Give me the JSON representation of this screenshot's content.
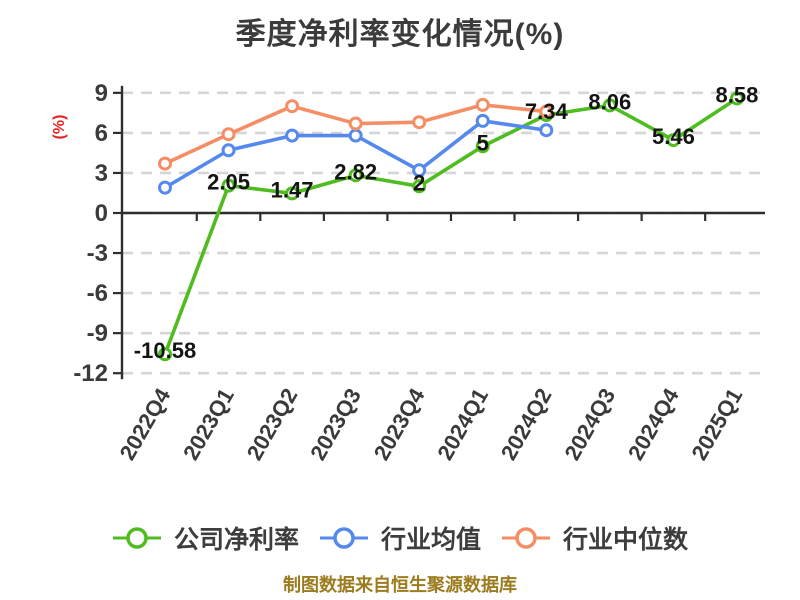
{
  "title": "季度净利率变化情况(%)",
  "y_axis_label": "(%)",
  "footer": "制图数据来自恒生聚源数据库",
  "colors": {
    "company_series": "#4fbc1f",
    "industry_mean_series": "#5589ee",
    "industry_median_series": "#f58e64",
    "axis": "#2e2e2e",
    "grid": "#d6d6d6",
    "title_text": "#3b3b3b",
    "tick_text": "#3a3a3a",
    "data_label_text": "#141414",
    "y_axis_label_text": "#e12520",
    "footer_text": "#9c7c1e",
    "marker_fill": "#ffffff"
  },
  "chart_data": {
    "type": "line",
    "title": "季度净利率变化情况(%)",
    "ylabel": "(%)",
    "xlabel": "",
    "categories": [
      "2022Q4",
      "2023Q1",
      "2023Q2",
      "2023Q3",
      "2023Q4",
      "2024Q1",
      "2024Q2",
      "2024Q3",
      "2024Q4",
      "2025Q1"
    ],
    "yticks": [
      9,
      6,
      3,
      0,
      -3,
      -6,
      -9,
      -12
    ],
    "ylim": [
      -12,
      9
    ],
    "grid": true,
    "grid_style": "dashed",
    "legend_position": "bottom",
    "series": [
      {
        "name": "公司净利率",
        "color": "#4fbc1f",
        "values": [
          -10.58,
          2.05,
          1.47,
          2.82,
          2,
          5,
          7.34,
          8.06,
          5.46,
          8.58
        ],
        "point_labels": [
          "-10.58",
          "2.05",
          "1.47",
          "2.82",
          "2",
          "5",
          "7.34",
          "8.06",
          "5.46",
          "8.58"
        ]
      },
      {
        "name": "行业均值",
        "color": "#5589ee",
        "values": [
          1.9,
          4.7,
          5.8,
          5.8,
          3.2,
          6.9,
          6.2,
          null,
          null,
          null
        ]
      },
      {
        "name": "行业中位数",
        "color": "#f58e64",
        "values": [
          3.7,
          5.9,
          8.0,
          6.7,
          6.8,
          8.1,
          7.6,
          null,
          null,
          null
        ]
      }
    ]
  }
}
